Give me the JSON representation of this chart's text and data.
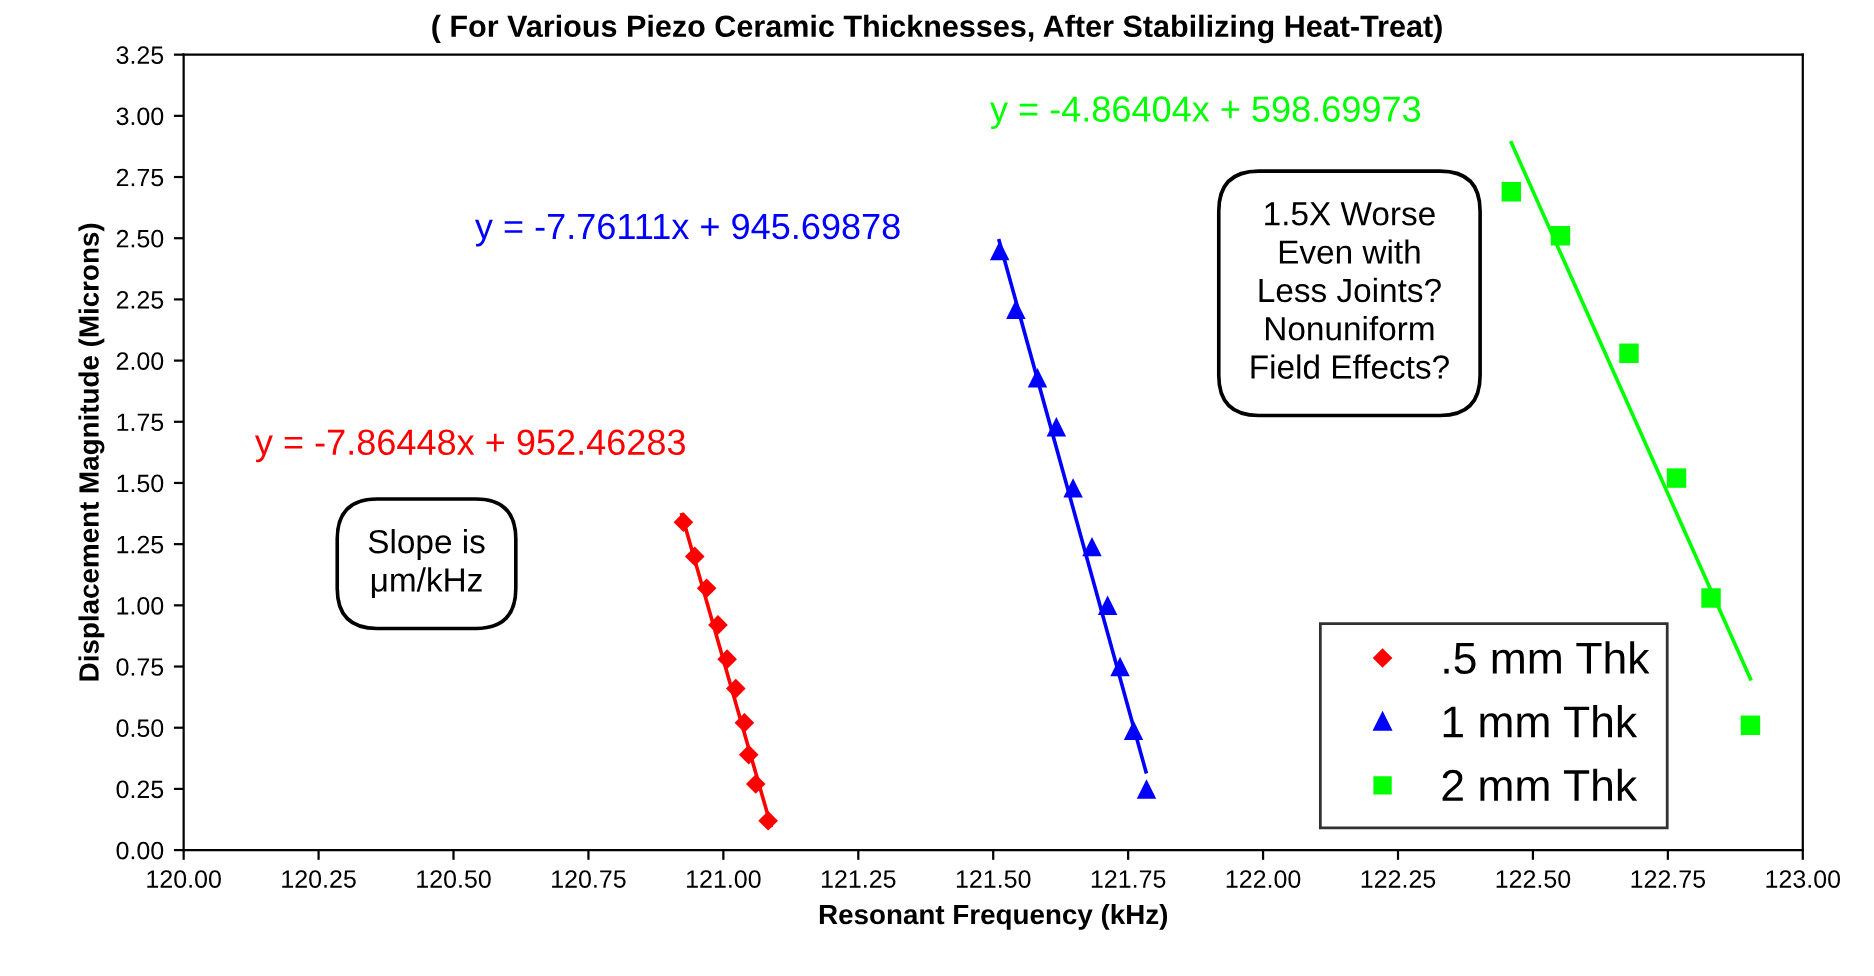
{
  "chart_data": {
    "type": "scatter",
    "title": "( For Various Piezo Ceramic Thicknesses, After Stabilizing Heat-Treat)",
    "xlabel": "Resonant Frequency (kHz)",
    "ylabel": "Displacement Magnitude (Microns)",
    "xlim": [
      120,
      123
    ],
    "ylim": [
      0,
      3.25
    ],
    "xticks": [
      {
        "value": 120,
        "label": "120.00"
      },
      {
        "value": 120.25,
        "label": "120.25"
      },
      {
        "value": 120.5,
        "label": "120.50"
      },
      {
        "value": 120.75,
        "label": "120.75"
      },
      {
        "value": 121,
        "label": "121.00"
      },
      {
        "value": 121.25,
        "label": "121.25"
      },
      {
        "value": 121.5,
        "label": "121.50"
      },
      {
        "value": 121.75,
        "label": "121.75"
      },
      {
        "value": 122,
        "label": "122.00"
      },
      {
        "value": 122.25,
        "label": "122.25"
      },
      {
        "value": 122.5,
        "label": "122.50"
      },
      {
        "value": 122.75,
        "label": "122.75"
      },
      {
        "value": 123,
        "label": "123.00"
      }
    ],
    "yticks": [
      {
        "value": 0,
        "label": "0.00"
      },
      {
        "value": 0.25,
        "label": "0.25"
      },
      {
        "value": 0.5,
        "label": "0.50"
      },
      {
        "value": 0.75,
        "label": "0.75"
      },
      {
        "value": 1,
        "label": "1.00"
      },
      {
        "value": 1.25,
        "label": "1.25"
      },
      {
        "value": 1.5,
        "label": "1.50"
      },
      {
        "value": 1.75,
        "label": "1.75"
      },
      {
        "value": 2,
        "label": "2.00"
      },
      {
        "value": 2.25,
        "label": "2.25"
      },
      {
        "value": 2.5,
        "label": "2.50"
      },
      {
        "value": 2.75,
        "label": "2.75"
      },
      {
        "value": 3,
        "label": "3.00"
      },
      {
        "value": 3.25,
        "label": "3.25"
      }
    ],
    "grid": false,
    "legend": "bottom right",
    "series": [
      {
        "name": ".5 mm Thk",
        "marker": "diamond",
        "color": "#ff0000",
        "x": [
          120.926,
          120.947,
          120.969,
          120.99,
          121.007,
          121.023,
          121.039,
          121.047,
          121.06,
          121.083
        ],
        "values": [
          1.34,
          1.2,
          1.07,
          0.92,
          0.78,
          0.66,
          0.52,
          0.39,
          0.27,
          0.12
        ]
      },
      {
        "name": "1 mm Thk",
        "marker": "triangle",
        "color": "#0000ff",
        "x": [
          121.512,
          121.542,
          121.582,
          121.617,
          121.648,
          121.683,
          121.712,
          121.735,
          121.76,
          121.784
        ],
        "values": [
          2.45,
          2.21,
          1.93,
          1.73,
          1.48,
          1.24,
          1.0,
          0.75,
          0.49,
          0.25
        ]
      },
      {
        "name": "2 mm Thk",
        "marker": "square",
        "color": "#00ff00",
        "x": [
          122.46,
          122.551,
          122.678,
          122.766,
          122.83,
          122.903
        ],
        "values": [
          2.69,
          2.51,
          2.03,
          1.52,
          1.03,
          0.51
        ]
      },
      {
        "name": "y = -7.86448x + 952.46283",
        "type": "line",
        "marker": "none",
        "color": "#ff0000",
        "x": [
          120.923,
          121.088
        ],
        "values": [
          1.37,
          0.1
        ]
      },
      {
        "name": "y = -7.76111x + 945.69878",
        "type": "line",
        "marker": "none",
        "color": "#0000ff",
        "x": [
          121.511,
          121.783
        ],
        "values": [
          2.49,
          0.32
        ]
      },
      {
        "name": "y = -4.86404x + 598.69973",
        "type": "line",
        "marker": "none",
        "color": "#00ff00",
        "x": [
          122.46,
          122.903
        ],
        "values": [
          2.89,
          0.7
        ]
      }
    ],
    "annotations": [
      "Slope is\nμm/kHz",
      "1.5X Worse\nEven with\nLess Joints?\nNonuniform\nField Effects?"
    ]
  }
}
